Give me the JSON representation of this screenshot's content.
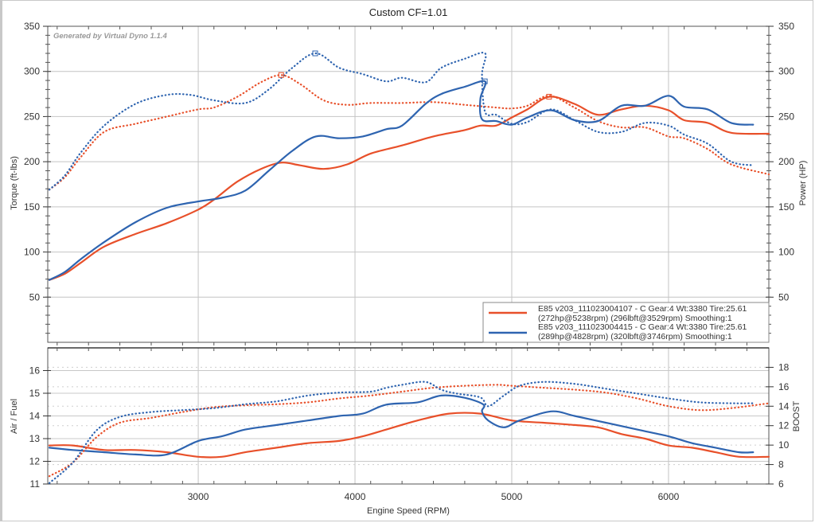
{
  "chart_data": [
    {
      "type": "line",
      "title": "Custom CF=1.01",
      "watermark": "Generated by Virtual Dyno 1.1.4",
      "xlabel": "Engine Speed (RPM)",
      "ylabel": "Torque (ft-lbs)",
      "ylabel_right": "Power (HP)",
      "xlim": [
        2040,
        6640
      ],
      "ylim": [
        0,
        350
      ],
      "ylim_right": [
        0,
        350
      ],
      "x_ticks": [
        3000,
        4000,
        5000,
        6000
      ],
      "y_ticks": [
        50,
        100,
        150,
        200,
        250,
        300,
        350
      ],
      "y_ticks_right": [
        50,
        100,
        150,
        200,
        250,
        300,
        350
      ],
      "grid": true,
      "legend_position": "bottom-right",
      "legend": [
        {
          "line1": "E85 v203_111023004107 - C Gear:4 Wt:3380 Tire:25.61",
          "line2": "(272hp@5238rpm) (296lbft@3529rpm) Smoothing:1",
          "color": "#e8502a"
        },
        {
          "line1": "E85 v203_111023004415 - C Gear:4 Wt:3380 Tire:25.61",
          "line2": "(289hp@4828rpm) (320lbft@3746rpm) Smoothing:1",
          "color": "#2e64b0"
        }
      ],
      "series": [
        {
          "name": "Run 004107 Power (HP)",
          "color": "#e8502a",
          "style": "solid",
          "x": [
            2050,
            2150,
            2250,
            2400,
            2600,
            2800,
            3000,
            3100,
            3250,
            3400,
            3530,
            3650,
            3800,
            3950,
            4100,
            4300,
            4500,
            4700,
            4800,
            4900,
            5000,
            5100,
            5240,
            5400,
            5550,
            5700,
            5850,
            6000,
            6100,
            6250,
            6400,
            6640
          ],
          "y": [
            69,
            76,
            88,
            106,
            120,
            132,
            147,
            158,
            178,
            192,
            199,
            196,
            192,
            197,
            209,
            218,
            228,
            235,
            240,
            240,
            249,
            258,
            272,
            264,
            252,
            258,
            262,
            257,
            246,
            243,
            232,
            231
          ]
        },
        {
          "name": "Run 004107 Torque (ft-lbs)",
          "color": "#e8502a",
          "style": "dotted",
          "x": [
            2050,
            2150,
            2250,
            2400,
            2600,
            2800,
            3000,
            3100,
            3250,
            3400,
            3530,
            3650,
            3800,
            3950,
            4100,
            4300,
            4500,
            4700,
            4900,
            5000,
            5100,
            5240,
            5400,
            5550,
            5700,
            5850,
            6000,
            6100,
            6250,
            6400,
            6640
          ],
          "y": [
            169,
            183,
            205,
            233,
            242,
            250,
            258,
            260,
            272,
            288,
            296,
            286,
            268,
            263,
            265,
            265,
            266,
            263,
            260,
            259,
            262,
            273,
            260,
            245,
            238,
            238,
            228,
            226,
            214,
            197,
            186
          ]
        },
        {
          "name": "Run 004415 Power (HP)",
          "color": "#2e64b0",
          "style": "solid",
          "x": [
            2050,
            2150,
            2250,
            2400,
            2600,
            2800,
            3000,
            3150,
            3300,
            3450,
            3600,
            3750,
            3900,
            4050,
            4200,
            4300,
            4450,
            4550,
            4700,
            4830,
            4800,
            4810,
            4900,
            5000,
            5100,
            5250,
            5400,
            5550,
            5700,
            5850,
            6000,
            6100,
            6250,
            6400,
            6540
          ],
          "y": [
            69,
            78,
            92,
            111,
            133,
            149,
            156,
            160,
            168,
            190,
            212,
            228,
            226,
            228,
            236,
            240,
            264,
            275,
            283,
            289,
            270,
            247,
            245,
            241,
            249,
            257,
            246,
            245,
            262,
            262,
            273,
            261,
            258,
            243,
            241
          ]
        },
        {
          "name": "Run 004415 Torque (ft-lbs)",
          "color": "#2e64b0",
          "style": "dotted",
          "x": [
            2050,
            2150,
            2250,
            2400,
            2600,
            2800,
            2950,
            3100,
            3300,
            3450,
            3600,
            3750,
            3900,
            4050,
            4200,
            4300,
            4450,
            4550,
            4700,
            4830,
            4810,
            4830,
            4900,
            5000,
            5100,
            5250,
            5400,
            5550,
            5700,
            5850,
            6000,
            6100,
            6250,
            6400,
            6540
          ],
          "y": [
            169,
            185,
            210,
            240,
            264,
            274,
            274,
            268,
            265,
            280,
            304,
            320,
            304,
            297,
            289,
            293,
            288,
            304,
            314,
            320,
            296,
            255,
            252,
            242,
            244,
            258,
            246,
            233,
            233,
            243,
            240,
            230,
            220,
            200,
            196
          ]
        }
      ]
    },
    {
      "type": "line",
      "title": "",
      "xlabel": "Engine Speed (RPM)",
      "ylabel": "Air / Fuel",
      "ylabel_right": "BOOST",
      "xlim": [
        2040,
        6640
      ],
      "ylim": [
        11,
        17
      ],
      "ylim_right": [
        6,
        20
      ],
      "x_ticks": [
        3000,
        4000,
        5000,
        6000
      ],
      "y_ticks": [
        11,
        12,
        13,
        14,
        15,
        16
      ],
      "y_ticks_right": [
        6,
        8,
        10,
        12,
        14,
        16,
        18
      ],
      "grid": true,
      "series": [
        {
          "name": "Run 004107 Air/Fuel",
          "color": "#e8502a",
          "style": "solid",
          "axis": "left",
          "x": [
            2050,
            2200,
            2400,
            2600,
            2800,
            3000,
            3150,
            3300,
            3500,
            3700,
            3900,
            4050,
            4200,
            4400,
            4600,
            4800,
            5000,
            5200,
            5400,
            5550,
            5700,
            5850,
            6000,
            6150,
            6300,
            6450,
            6640
          ],
          "y": [
            12.7,
            12.7,
            12.5,
            12.5,
            12.4,
            12.2,
            12.2,
            12.4,
            12.6,
            12.8,
            12.9,
            13.1,
            13.4,
            13.8,
            14.1,
            14.1,
            13.8,
            13.7,
            13.6,
            13.5,
            13.2,
            13.0,
            12.7,
            12.6,
            12.4,
            12.2,
            12.2
          ]
        },
        {
          "name": "Run 004415 Air/Fuel",
          "color": "#2e64b0",
          "style": "solid",
          "axis": "left",
          "x": [
            2050,
            2200,
            2400,
            2600,
            2800,
            3000,
            3150,
            3300,
            3500,
            3700,
            3900,
            4050,
            4200,
            4400,
            4550,
            4700,
            4820,
            4810,
            4850,
            4950,
            5050,
            5250,
            5400,
            5600,
            5800,
            6000,
            6150,
            6300,
            6450,
            6540
          ],
          "y": [
            12.6,
            12.5,
            12.4,
            12.3,
            12.3,
            12.9,
            13.1,
            13.4,
            13.6,
            13.8,
            14.0,
            14.1,
            14.5,
            14.6,
            14.9,
            14.8,
            14.5,
            14.2,
            13.8,
            13.5,
            13.8,
            14.2,
            14.0,
            13.7,
            13.4,
            13.1,
            12.8,
            12.6,
            12.4,
            12.4
          ]
        },
        {
          "name": "Run 004107 Boost",
          "color": "#e8502a",
          "style": "dotted",
          "axis": "right",
          "x": [
            2050,
            2200,
            2350,
            2500,
            2700,
            2900,
            3100,
            3300,
            3500,
            3700,
            3900,
            4100,
            4300,
            4500,
            4700,
            4900,
            5000,
            5200,
            5400,
            5600,
            5800,
            6000,
            6200,
            6400,
            6640
          ],
          "y": [
            6.8,
            8.2,
            10.8,
            12.3,
            12.8,
            13.4,
            13.9,
            14.1,
            14.2,
            14.4,
            14.8,
            15.1,
            15.5,
            15.9,
            16.1,
            16.2,
            16.1,
            15.9,
            15.7,
            15.4,
            14.8,
            14.0,
            13.6,
            13.8,
            14.3
          ]
        },
        {
          "name": "Run 004415 Boost",
          "color": "#2e64b0",
          "style": "dotted",
          "axis": "right",
          "x": [
            2050,
            2200,
            2350,
            2500,
            2700,
            2900,
            3100,
            3300,
            3500,
            3700,
            3900,
            4100,
            4200,
            4300,
            4450,
            4550,
            4650,
            4800,
            4850,
            4950,
            5050,
            5200,
            5400,
            5600,
            5800,
            6000,
            6200,
            6400,
            6540
          ],
          "y": [
            6.1,
            8.2,
            11.5,
            12.9,
            13.4,
            13.6,
            13.8,
            14.2,
            14.5,
            15.1,
            15.4,
            15.5,
            15.9,
            16.2,
            16.5,
            15.7,
            15.3,
            14.9,
            14.0,
            15.1,
            16.1,
            16.5,
            16.3,
            15.8,
            15.3,
            14.8,
            14.4,
            14.3,
            14.3
          ]
        }
      ]
    }
  ]
}
